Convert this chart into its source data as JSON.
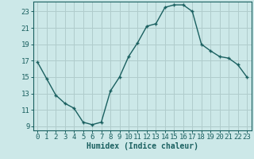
{
  "x": [
    0,
    1,
    2,
    3,
    4,
    5,
    6,
    7,
    8,
    9,
    10,
    11,
    12,
    13,
    14,
    15,
    16,
    17,
    18,
    19,
    20,
    21,
    22,
    23
  ],
  "y": [
    16.8,
    14.8,
    12.8,
    11.8,
    11.2,
    9.5,
    9.2,
    9.5,
    13.3,
    15.0,
    17.5,
    19.2,
    21.2,
    21.5,
    23.5,
    23.8,
    23.8,
    23.0,
    19.0,
    18.2,
    17.5,
    17.3,
    16.5,
    15.0
  ],
  "bg_color": "#cce8e8",
  "grid_color": "#b0cccc",
  "line_color": "#1a6060",
  "marker_color": "#1a6060",
  "xlabel": "Humidex (Indice chaleur)",
  "yticks": [
    9,
    11,
    13,
    15,
    17,
    19,
    21,
    23
  ],
  "xticks": [
    0,
    1,
    2,
    3,
    4,
    5,
    6,
    7,
    8,
    9,
    10,
    11,
    12,
    13,
    14,
    15,
    16,
    17,
    18,
    19,
    20,
    21,
    22,
    23
  ],
  "xlim": [
    -0.5,
    23.5
  ],
  "ylim": [
    8.5,
    24.2
  ],
  "xlabel_fontsize": 7,
  "tick_fontsize": 6.5
}
